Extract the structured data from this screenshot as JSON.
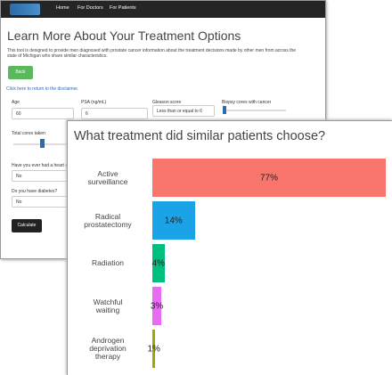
{
  "nav": {
    "links": [
      "Home",
      "For Doctors",
      "For Patients"
    ]
  },
  "header": {
    "title": "Learn More About Your Treatment Options",
    "description": "This tool is designed to provide men diagnosed with prostate cancer information about the treatment decisions made by other men from across the state of Michigan who share similar characteristics."
  },
  "back_button": "Back",
  "disclaimer_link": "Click here to return to the disclaimer.",
  "form": {
    "fields": [
      {
        "label": "Age",
        "value": "60"
      },
      {
        "label": "PSA (ng/mL)",
        "value": "6"
      },
      {
        "label": "Gleason score",
        "value": "Less than or equal to 6"
      },
      {
        "label": "Biopsy cores with cancer"
      },
      {
        "label": "Total cores taken"
      },
      {
        "label": "Have you ever had a heart attack?",
        "value": "No"
      },
      {
        "label": "Do you have diabetes?",
        "value": "No"
      }
    ],
    "submit": "Calculate"
  },
  "chart_data": {
    "type": "bar",
    "orientation": "horizontal",
    "title": "What treatment did similar patients choose?",
    "categories": [
      "Active\nsurveillance",
      "Radical\nprostatectomy",
      "Radiation",
      "Watchful\nwaiting",
      "Androgen\ndeprivation\ntherapy"
    ],
    "values": [
      77,
      14,
      4,
      3,
      1
    ],
    "value_labels": [
      "77%",
      "14%",
      "4%",
      "3%",
      "1%"
    ],
    "colors": [
      "#f8766d",
      "#1ba3e8",
      "#00bf7d",
      "#e76bf3",
      "#a3a500"
    ]
  }
}
